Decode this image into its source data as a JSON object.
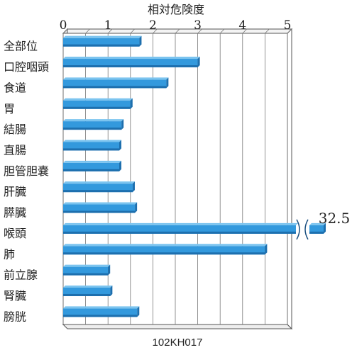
{
  "chart_data": {
    "type": "bar",
    "orientation": "horizontal",
    "title": "相対危険度",
    "caption": "102KH017",
    "categories": [
      "全部位",
      "口腔咽頭",
      "食道",
      "胃",
      "結腸",
      "直腸",
      "胆管胆嚢",
      "肝臓",
      "膵臓",
      "喉頭",
      "肺",
      "前立腺",
      "腎臓",
      "膀胱"
    ],
    "values": [
      1.7,
      3.0,
      2.3,
      1.5,
      1.3,
      1.25,
      1.25,
      1.55,
      1.6,
      32.5,
      4.5,
      1.0,
      1.05,
      1.65
    ],
    "xticks": [
      "0",
      "1",
      "2",
      "3",
      "4",
      "5"
    ],
    "xlim": [
      0,
      5
    ],
    "axis_break": {
      "category": "喉頭",
      "label": "32.5"
    },
    "grid": true,
    "colors": {
      "bar": "#3399dd",
      "bar_dark": "#1d6fae",
      "bar_light": "#7cc4ef",
      "grid": "#777777"
    }
  }
}
